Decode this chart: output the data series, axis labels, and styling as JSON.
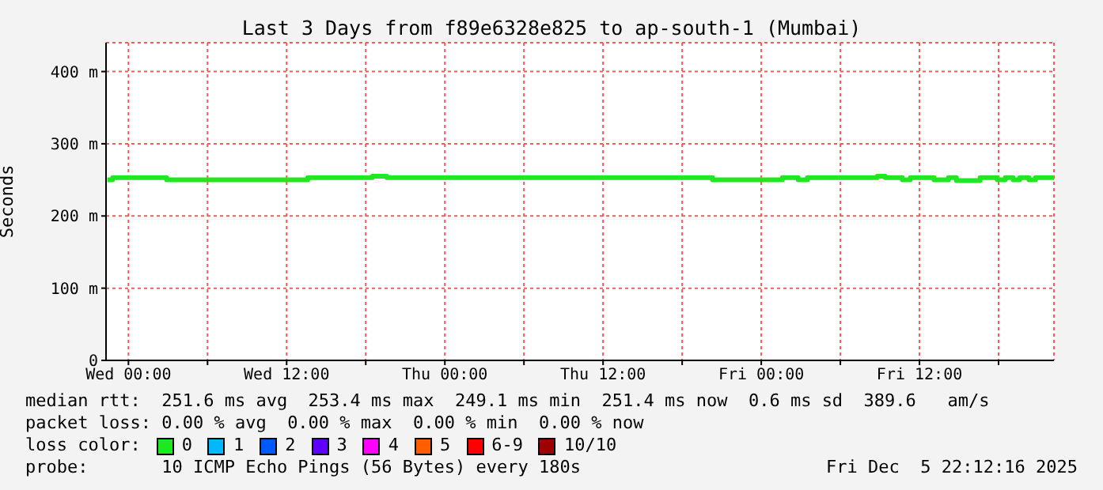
{
  "chart_data": {
    "type": "step",
    "title": "Last 3 Days from f89e6328e825 to ap-south-1 (Mumbai)",
    "ylabel": "Seconds",
    "x": [
      "2025-12-02T22:24",
      "2025-12-02T22:48",
      "2025-12-03T02:54",
      "2025-12-03T13:36",
      "2025-12-03T18:30",
      "2025-12-03T19:36",
      "2025-12-04T20:18",
      "2025-12-05T01:36",
      "2025-12-05T02:48",
      "2025-12-05T03:30",
      "2025-12-05T08:48",
      "2025-12-05T09:24",
      "2025-12-05T10:42",
      "2025-12-05T11:18",
      "2025-12-05T13:06",
      "2025-12-05T14:12",
      "2025-12-05T14:48",
      "2025-12-05T16:36",
      "2025-12-05T17:54",
      "2025-12-05T18:30",
      "2025-12-05T19:06",
      "2025-12-05T19:36",
      "2025-12-05T20:18",
      "2025-12-05T20:48",
      "2025-12-05T22:12"
    ],
    "series": [
      {
        "name": "0",
        "color": "#20e820",
        "values": [
          250,
          253,
          250,
          253,
          255,
          253,
          250,
          253,
          250,
          253,
          255,
          253,
          250,
          253,
          250,
          253,
          249,
          253,
          250,
          253,
          250,
          253,
          250,
          253,
          253
        ]
      },
      {
        "name": "1",
        "color": "#00b8ff",
        "values": [
          null,
          null,
          null,
          null,
          null,
          null,
          null,
          null,
          null,
          null,
          null,
          null,
          null,
          null,
          null,
          null,
          null,
          null,
          null,
          null,
          null,
          null,
          null,
          null,
          null
        ]
      },
      {
        "name": "2",
        "color": "#0059ff",
        "values": [
          null,
          null,
          null,
          null,
          null,
          null,
          null,
          null,
          null,
          null,
          null,
          null,
          null,
          null,
          null,
          null,
          null,
          null,
          null,
          null,
          null,
          null,
          null,
          null,
          null
        ]
      },
      {
        "name": "3",
        "color": "#5e00ff",
        "values": [
          null,
          null,
          null,
          null,
          null,
          null,
          null,
          null,
          null,
          null,
          null,
          null,
          null,
          null,
          null,
          null,
          null,
          null,
          null,
          null,
          null,
          null,
          null,
          null,
          null
        ]
      },
      {
        "name": "4",
        "color": "#ff00ff",
        "values": [
          null,
          null,
          null,
          null,
          null,
          null,
          null,
          null,
          null,
          null,
          null,
          null,
          null,
          null,
          null,
          null,
          null,
          null,
          null,
          null,
          null,
          null,
          null,
          null,
          null
        ]
      },
      {
        "name": "5",
        "color": "#ff5e00",
        "values": [
          null,
          null,
          null,
          null,
          null,
          null,
          null,
          null,
          null,
          null,
          null,
          null,
          null,
          null,
          null,
          null,
          null,
          null,
          null,
          null,
          null,
          null,
          null,
          null,
          null
        ]
      },
      {
        "name": "6-9",
        "color": "#ff0000",
        "values": [
          null,
          null,
          null,
          null,
          null,
          null,
          null,
          null,
          null,
          null,
          null,
          null,
          null,
          null,
          null,
          null,
          null,
          null,
          null,
          null,
          null,
          null,
          null,
          null,
          null
        ]
      },
      {
        "name": "10/10",
        "color": "#a10000",
        "values": [
          null,
          null,
          null,
          null,
          null,
          null,
          null,
          null,
          null,
          null,
          null,
          null,
          null,
          null,
          null,
          null,
          null,
          null,
          null,
          null,
          null,
          null,
          null,
          null,
          null
        ]
      }
    ],
    "legend": "bottom",
    "legend_title": "loss color:",
    "xlim": [
      "2025-12-02T22:18",
      "2025-12-05T22:12"
    ],
    "xticks": [
      {
        "value": "2025-12-03T00:00",
        "label": "Wed 00:00"
      },
      {
        "value": "2025-12-03T06:00",
        "label": null
      },
      {
        "value": "2025-12-03T12:00",
        "label": "Wed 12:00"
      },
      {
        "value": "2025-12-03T18:00",
        "label": null
      },
      {
        "value": "2025-12-04T00:00",
        "label": "Thu 00:00"
      },
      {
        "value": "2025-12-04T06:00",
        "label": null
      },
      {
        "value": "2025-12-04T12:00",
        "label": "Thu 12:00"
      },
      {
        "value": "2025-12-04T18:00",
        "label": null
      },
      {
        "value": "2025-12-05T00:00",
        "label": "Fri 00:00"
      },
      {
        "value": "2025-12-05T06:00",
        "label": null
      },
      {
        "value": "2025-12-05T12:00",
        "label": "Fri 12:00"
      },
      {
        "value": "2025-12-05T18:00",
        "label": null
      }
    ],
    "ylim": [
      0,
      440
    ],
    "yticks": [
      0,
      {
        "value": 100,
        "label": "100 m"
      },
      {
        "value": 200,
        "label": "200 m"
      },
      {
        "value": 300,
        "label": "300 m"
      },
      {
        "value": 400,
        "label": "400 m"
      }
    ],
    "grid": true,
    "annotations": [
      "median rtt:  251.6 ms avg  253.4 ms max  249.1 ms min  251.4 ms now  0.6 ms sd  389.6   am/s",
      "packet loss: 0.00 % avg  0.00 % max  0.00 % min  0.00 % now",
      "probe:       10 ICMP Echo Pings (56 Bytes) every 180s",
      "Fri Dec  5 22:12:16 2025"
    ]
  }
}
